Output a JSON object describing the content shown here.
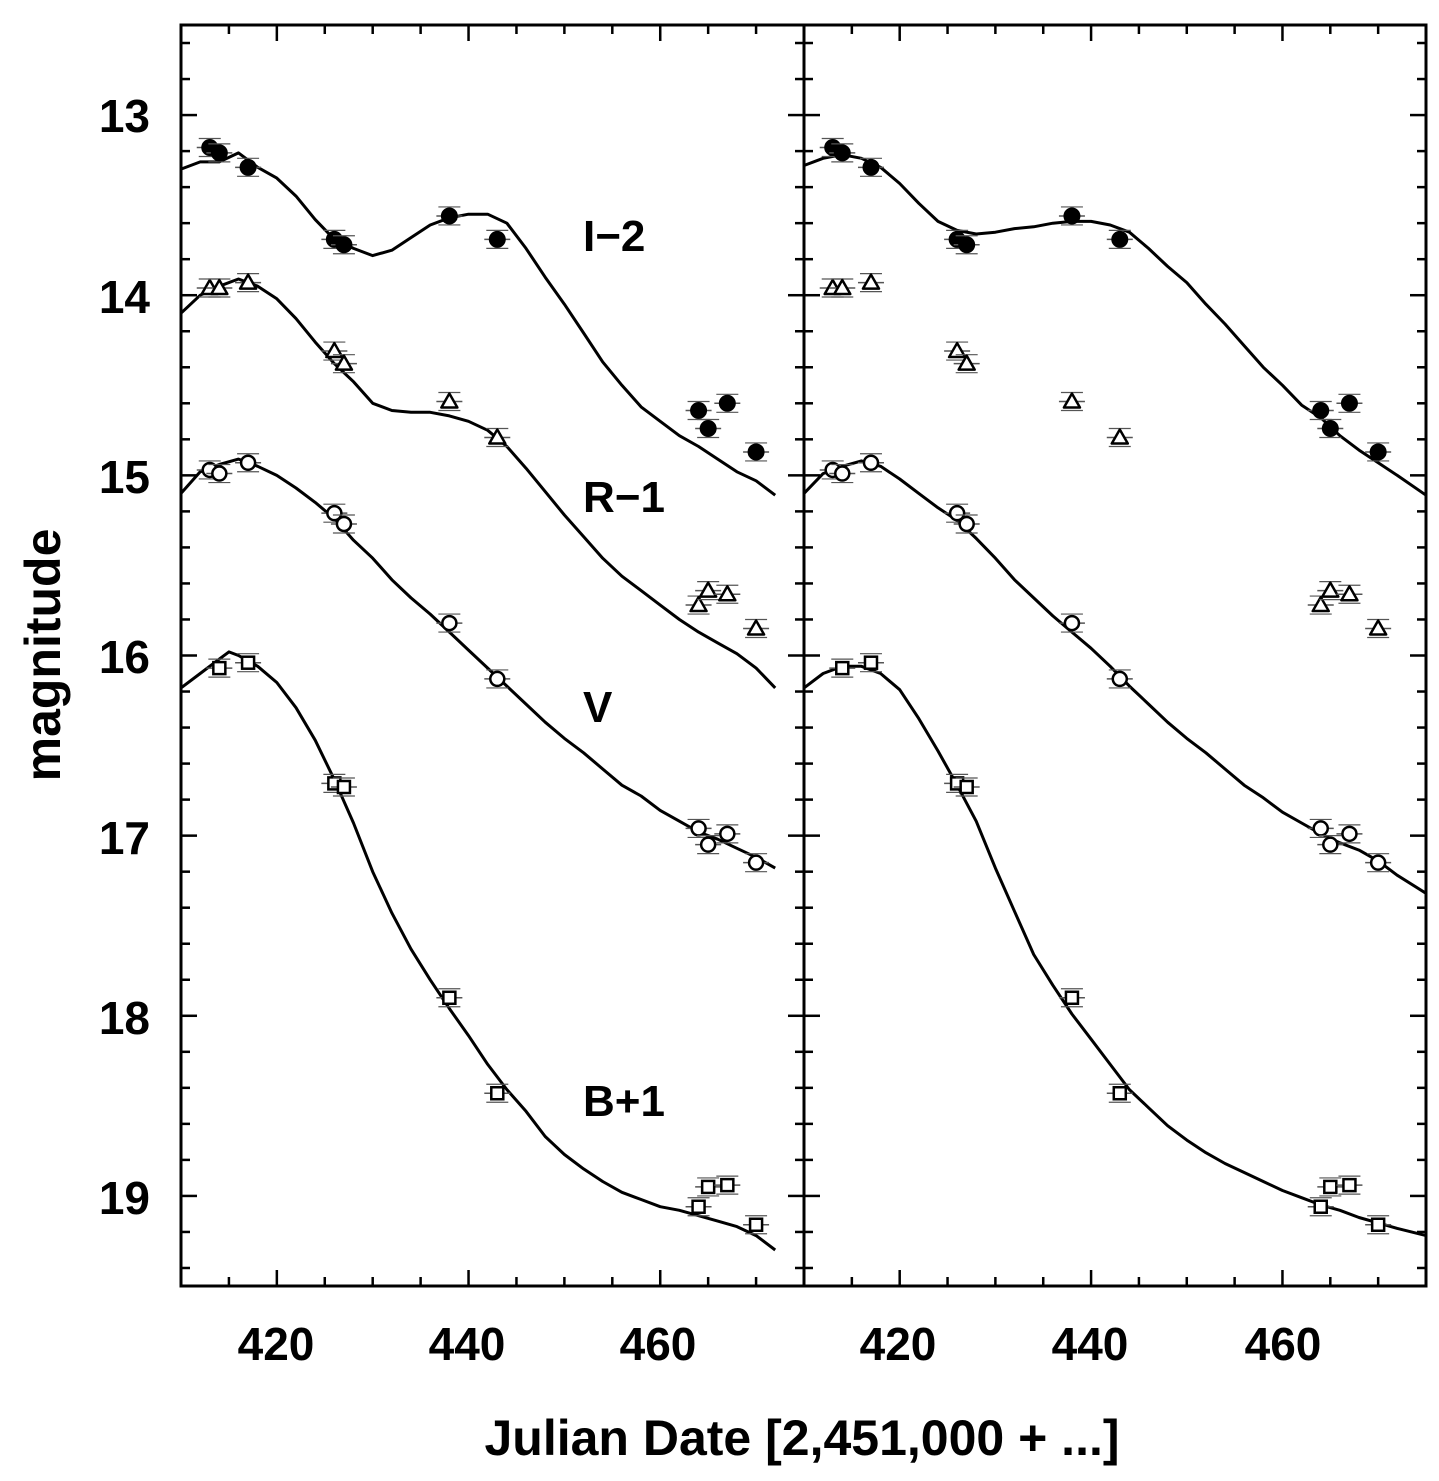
{
  "chart_data": {
    "type": "scatter",
    "xlabel": "Julian Date [2,451,000 + ...]",
    "ylabel": "magnitude",
    "xlim": [
      410,
      475
    ],
    "ylim": [
      12.5,
      19.5
    ],
    "y_inverted": true,
    "xticks": [
      "420",
      "440",
      "460"
    ],
    "yticks": [
      "13",
      "14",
      "15",
      "16",
      "17",
      "18",
      "19"
    ],
    "panels": [
      "left",
      "right"
    ],
    "band_labels": [
      "I−2",
      "R−1",
      "V",
      "B+1"
    ],
    "colors": {
      "line": "#000000",
      "background": "#ffffff",
      "errorbar": "#555555"
    },
    "series": [
      {
        "name": "I−2",
        "marker": "filled-circle",
        "points": [
          [
            413,
            13.18
          ],
          [
            414,
            13.21
          ],
          [
            417,
            13.29
          ],
          [
            426,
            13.69
          ],
          [
            427,
            13.72
          ],
          [
            438,
            13.56
          ],
          [
            443,
            13.69
          ],
          [
            464,
            14.64
          ],
          [
            465,
            14.74
          ],
          [
            467,
            14.6
          ],
          [
            470,
            14.87
          ]
        ]
      },
      {
        "name": "R−1",
        "marker": "triangle",
        "points": [
          [
            413,
            13.96
          ],
          [
            414,
            13.96
          ],
          [
            417,
            13.93
          ],
          [
            426,
            14.31
          ],
          [
            427,
            14.38
          ],
          [
            438,
            14.59
          ],
          [
            443,
            14.79
          ],
          [
            464,
            15.72
          ],
          [
            465,
            15.64
          ],
          [
            467,
            15.66
          ],
          [
            470,
            15.85
          ]
        ]
      },
      {
        "name": "V",
        "marker": "open-circle",
        "points": [
          [
            413,
            14.97
          ],
          [
            414,
            14.99
          ],
          [
            417,
            14.93
          ],
          [
            426,
            15.21
          ],
          [
            427,
            15.27
          ],
          [
            438,
            15.82
          ],
          [
            443,
            16.13
          ],
          [
            464,
            16.96
          ],
          [
            465,
            17.05
          ],
          [
            467,
            16.99
          ],
          [
            470,
            17.15
          ]
        ]
      },
      {
        "name": "B+1",
        "marker": "square",
        "points": [
          [
            414,
            16.07
          ],
          [
            417,
            16.04
          ],
          [
            426,
            16.71
          ],
          [
            427,
            16.73
          ],
          [
            438,
            17.9
          ],
          [
            443,
            18.43
          ],
          [
            464,
            19.06
          ],
          [
            465,
            18.95
          ],
          [
            467,
            18.94
          ],
          [
            470,
            19.16
          ]
        ]
      }
    ],
    "models": {
      "left": [
        {
          "name": "I−2 model",
          "points": [
            [
              410,
              13.3
            ],
            [
              412,
              13.26
            ],
            [
              414,
              13.26
            ],
            [
              416,
              13.21
            ],
            [
              418,
              13.29
            ],
            [
              420,
              13.35
            ],
            [
              422,
              13.45
            ],
            [
              424,
              13.58
            ],
            [
              426,
              13.69
            ],
            [
              428,
              13.74
            ],
            [
              430,
              13.78
            ],
            [
              432,
              13.75
            ],
            [
              434,
              13.68
            ],
            [
              436,
              13.61
            ],
            [
              438,
              13.57
            ],
            [
              440,
              13.55
            ],
            [
              442,
              13.55
            ],
            [
              444,
              13.6
            ],
            [
              446,
              13.74
            ],
            [
              448,
              13.9
            ],
            [
              450,
              14.05
            ],
            [
              452,
              14.21
            ],
            [
              454,
              14.37
            ],
            [
              456,
              14.5
            ],
            [
              458,
              14.62
            ],
            [
              460,
              14.7
            ],
            [
              462,
              14.78
            ],
            [
              464,
              14.84
            ],
            [
              466,
              14.91
            ],
            [
              468,
              14.98
            ],
            [
              470,
              15.03
            ],
            [
              472,
              15.11
            ]
          ]
        },
        {
          "name": "R−1 model",
          "points": [
            [
              410,
              14.1
            ],
            [
              412,
              14.0
            ],
            [
              414,
              13.95
            ],
            [
              416,
              13.91
            ],
            [
              418,
              13.95
            ],
            [
              420,
              14.02
            ],
            [
              422,
              14.13
            ],
            [
              424,
              14.26
            ],
            [
              426,
              14.38
            ],
            [
              428,
              14.48
            ],
            [
              430,
              14.6
            ],
            [
              432,
              14.64
            ],
            [
              434,
              14.65
            ],
            [
              436,
              14.65
            ],
            [
              438,
              14.67
            ],
            [
              440,
              14.7
            ],
            [
              442,
              14.75
            ],
            [
              444,
              14.84
            ],
            [
              446,
              14.96
            ],
            [
              448,
              15.09
            ],
            [
              450,
              15.22
            ],
            [
              452,
              15.34
            ],
            [
              454,
              15.46
            ],
            [
              456,
              15.56
            ],
            [
              458,
              15.64
            ],
            [
              460,
              15.72
            ],
            [
              462,
              15.8
            ],
            [
              464,
              15.87
            ],
            [
              466,
              15.93
            ],
            [
              468,
              15.99
            ],
            [
              470,
              16.07
            ],
            [
              472,
              16.18
            ]
          ]
        },
        {
          "name": "V model",
          "points": [
            [
              410,
              15.1
            ],
            [
              412,
              14.98
            ],
            [
              414,
              14.94
            ],
            [
              416,
              14.91
            ],
            [
              418,
              14.95
            ],
            [
              420,
              15.0
            ],
            [
              422,
              15.07
            ],
            [
              424,
              15.15
            ],
            [
              426,
              15.24
            ],
            [
              428,
              15.36
            ],
            [
              430,
              15.46
            ],
            [
              432,
              15.58
            ],
            [
              434,
              15.68
            ],
            [
              436,
              15.77
            ],
            [
              438,
              15.87
            ],
            [
              440,
              15.97
            ],
            [
              442,
              16.07
            ],
            [
              444,
              16.17
            ],
            [
              446,
              16.27
            ],
            [
              448,
              16.37
            ],
            [
              450,
              16.46
            ],
            [
              452,
              16.54
            ],
            [
              454,
              16.63
            ],
            [
              456,
              16.72
            ],
            [
              458,
              16.78
            ],
            [
              460,
              16.86
            ],
            [
              462,
              16.92
            ],
            [
              464,
              16.98
            ],
            [
              466,
              17.02
            ],
            [
              468,
              17.07
            ],
            [
              470,
              17.12
            ],
            [
              472,
              17.18
            ]
          ]
        },
        {
          "name": "B+1 model",
          "points": [
            [
              410,
              16.18
            ],
            [
              412,
              16.1
            ],
            [
              414,
              16.02
            ],
            [
              415,
              15.98
            ],
            [
              416,
              16.0
            ],
            [
              418,
              16.06
            ],
            [
              420,
              16.15
            ],
            [
              422,
              16.29
            ],
            [
              424,
              16.47
            ],
            [
              426,
              16.69
            ],
            [
              428,
              16.93
            ],
            [
              430,
              17.2
            ],
            [
              432,
              17.43
            ],
            [
              434,
              17.63
            ],
            [
              436,
              17.8
            ],
            [
              438,
              17.96
            ],
            [
              440,
              18.11
            ],
            [
              442,
              18.27
            ],
            [
              444,
              18.41
            ],
            [
              446,
              18.53
            ],
            [
              448,
              18.67
            ],
            [
              450,
              18.77
            ],
            [
              452,
              18.85
            ],
            [
              454,
              18.92
            ],
            [
              456,
              18.98
            ],
            [
              458,
              19.02
            ],
            [
              460,
              19.06
            ],
            [
              462,
              19.08
            ],
            [
              464,
              19.11
            ],
            [
              466,
              19.14
            ],
            [
              468,
              19.17
            ],
            [
              470,
              19.22
            ],
            [
              472,
              19.3
            ]
          ]
        }
      ],
      "right": [
        {
          "name": "I−2 model",
          "points": [
            [
              410,
              13.28
            ],
            [
              412,
              13.24
            ],
            [
              414,
              13.22
            ],
            [
              416,
              13.24
            ],
            [
              418,
              13.29
            ],
            [
              420,
              13.38
            ],
            [
              422,
              13.49
            ],
            [
              424,
              13.59
            ],
            [
              426,
              13.64
            ],
            [
              428,
              13.66
            ],
            [
              430,
              13.65
            ],
            [
              432,
              13.63
            ],
            [
              434,
              13.62
            ],
            [
              436,
              13.6
            ],
            [
              438,
              13.59
            ],
            [
              440,
              13.59
            ],
            [
              442,
              13.61
            ],
            [
              444,
              13.65
            ],
            [
              446,
              13.74
            ],
            [
              448,
              13.84
            ],
            [
              450,
              13.93
            ],
            [
              452,
              14.05
            ],
            [
              454,
              14.16
            ],
            [
              456,
              14.28
            ],
            [
              458,
              14.4
            ],
            [
              460,
              14.5
            ],
            [
              462,
              14.61
            ],
            [
              464,
              14.68
            ],
            [
              466,
              14.78
            ],
            [
              468,
              14.86
            ],
            [
              470,
              14.93
            ],
            [
              472,
              15.0
            ],
            [
              475,
              15.11
            ]
          ]
        },
        {
          "name": "V model",
          "points": [
            [
              410,
              15.1
            ],
            [
              412,
              14.99
            ],
            [
              414,
              14.95
            ],
            [
              416,
              14.92
            ],
            [
              418,
              14.95
            ],
            [
              420,
              15.02
            ],
            [
              422,
              15.1
            ],
            [
              424,
              15.18
            ],
            [
              426,
              15.25
            ],
            [
              428,
              15.35
            ],
            [
              430,
              15.46
            ],
            [
              432,
              15.58
            ],
            [
              434,
              15.68
            ],
            [
              436,
              15.78
            ],
            [
              438,
              15.87
            ],
            [
              440,
              15.96
            ],
            [
              442,
              16.06
            ],
            [
              444,
              16.17
            ],
            [
              446,
              16.27
            ],
            [
              448,
              16.37
            ],
            [
              450,
              16.46
            ],
            [
              452,
              16.54
            ],
            [
              454,
              16.63
            ],
            [
              456,
              16.72
            ],
            [
              458,
              16.79
            ],
            [
              460,
              16.87
            ],
            [
              462,
              16.93
            ],
            [
              464,
              16.99
            ],
            [
              466,
              17.04
            ],
            [
              468,
              17.08
            ],
            [
              470,
              17.14
            ],
            [
              472,
              17.22
            ],
            [
              475,
              17.32
            ]
          ]
        },
        {
          "name": "B+1 model",
          "points": [
            [
              410,
              16.18
            ],
            [
              412,
              16.1
            ],
            [
              414,
              16.06
            ],
            [
              416,
              16.06
            ],
            [
              418,
              16.1
            ],
            [
              420,
              16.19
            ],
            [
              422,
              16.35
            ],
            [
              424,
              16.53
            ],
            [
              426,
              16.72
            ],
            [
              428,
              16.92
            ],
            [
              430,
              17.18
            ],
            [
              432,
              17.42
            ],
            [
              434,
              17.66
            ],
            [
              436,
              17.83
            ],
            [
              438,
              17.99
            ],
            [
              440,
              18.13
            ],
            [
              442,
              18.27
            ],
            [
              444,
              18.41
            ],
            [
              446,
              18.51
            ],
            [
              448,
              18.61
            ],
            [
              450,
              18.69
            ],
            [
              452,
              18.76
            ],
            [
              454,
              18.82
            ],
            [
              456,
              18.87
            ],
            [
              458,
              18.92
            ],
            [
              460,
              18.97
            ],
            [
              462,
              19.01
            ],
            [
              464,
              19.05
            ],
            [
              466,
              19.08
            ],
            [
              468,
              19.12
            ],
            [
              470,
              19.15
            ],
            [
              472,
              19.18
            ],
            [
              475,
              19.22
            ]
          ]
        }
      ]
    }
  }
}
